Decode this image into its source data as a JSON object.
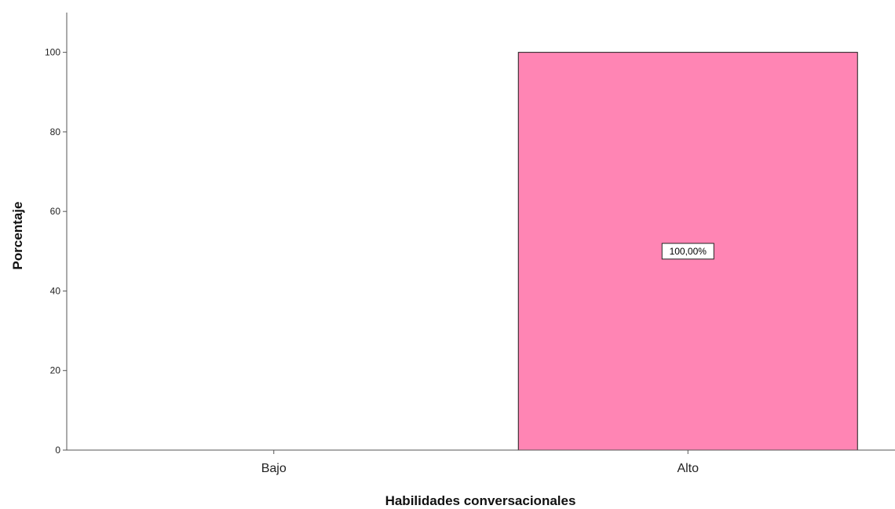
{
  "chart_data": {
    "type": "bar",
    "categories": [
      "Bajo",
      "Alto"
    ],
    "values": [
      0,
      100
    ],
    "data_labels": [
      "",
      "100,00%"
    ],
    "xlabel": "Habilidades conversacionales",
    "ylabel": "Porcentaje",
    "ylim": [
      0,
      110
    ],
    "yticks": [
      0,
      20,
      40,
      60,
      80,
      100
    ],
    "grid": false,
    "bar_color": "#FF85B4",
    "bar_edge_color": "#1a1a1a"
  }
}
